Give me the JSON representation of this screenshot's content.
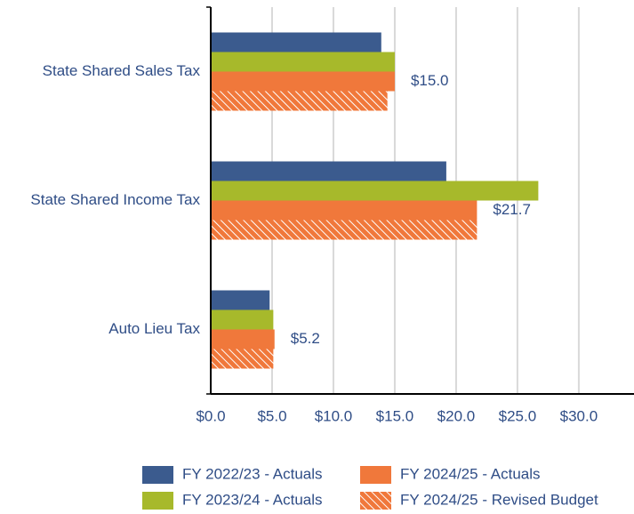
{
  "chart_data": {
    "type": "hbar",
    "categories": [
      "State Shared Sales Tax",
      "State Shared Income Tax",
      "Auto Lieu Tax"
    ],
    "series": [
      {
        "name": "FY 2022/23 - Actuals",
        "color": "#3b5b8e",
        "values": [
          13.9,
          19.2,
          4.8
        ]
      },
      {
        "name": "FY 2023/24 - Actuals",
        "color": "#a7b92b",
        "values": [
          15.0,
          26.7,
          5.1
        ]
      },
      {
        "name": "FY 2024/25 - Actuals",
        "color": "#f0783b",
        "values": [
          15.0,
          21.7,
          5.2
        ],
        "value_labels": [
          "$15.0",
          "$21.7",
          "$5.2"
        ]
      },
      {
        "name": "FY 2024/25 - Revised Budget",
        "color": "#f0783b",
        "pattern": "hatch",
        "values": [
          14.4,
          21.7,
          5.1
        ]
      }
    ],
    "xlim": [
      0,
      34.5
    ],
    "xticks": [
      {
        "value": 0,
        "label": "$0.0"
      },
      {
        "value": 5,
        "label": "$5.0"
      },
      {
        "value": 10,
        "label": "$10.0"
      },
      {
        "value": 15,
        "label": "$15.0"
      },
      {
        "value": 20,
        "label": "$20.0"
      },
      {
        "value": 25,
        "label": "$25.0"
      },
      {
        "value": 30,
        "label": "$30.0"
      }
    ],
    "grid": true,
    "legend": "bottom"
  }
}
